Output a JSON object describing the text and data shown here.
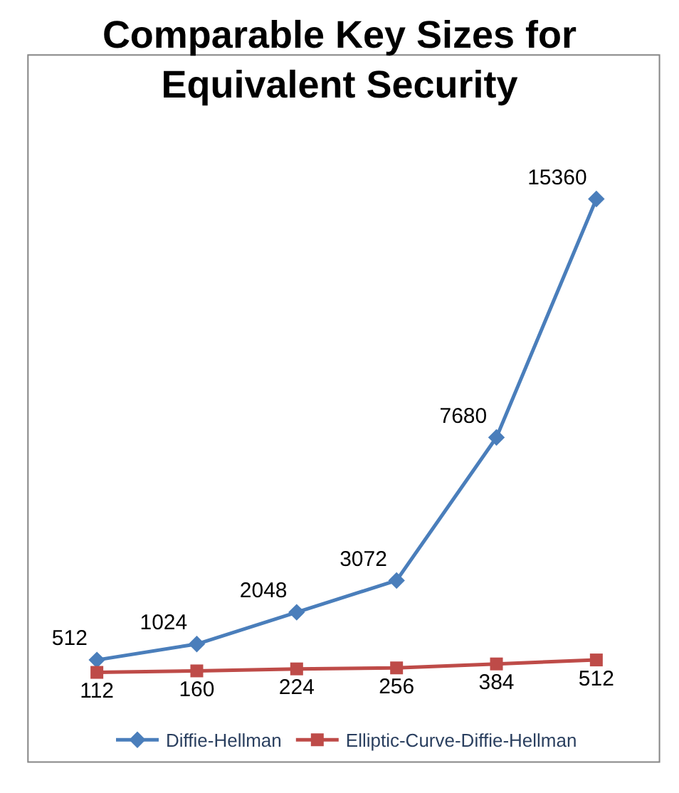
{
  "chart_data": {
    "type": "line",
    "title": "Comparable Key Sizes for Equivalent Security",
    "categories": [
      null,
      null,
      null,
      null,
      null,
      null
    ],
    "series": [
      {
        "name": "Diffie-Hellman",
        "color": "#4a7ebb",
        "marker": "diamond",
        "values": [
          512,
          1024,
          2048,
          3072,
          7680,
          15360
        ]
      },
      {
        "name": "Elliptic-Curve-Diffie-Hellman",
        "color": "#be4b48",
        "marker": "square",
        "values": [
          112,
          160,
          224,
          256,
          384,
          512
        ]
      }
    ],
    "data_labels": true,
    "legend": "bottom",
    "line_style": "solid"
  }
}
